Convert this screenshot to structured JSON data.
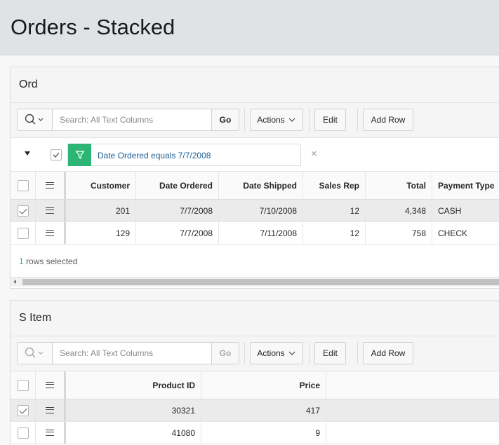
{
  "page": {
    "title": "Orders - Stacked"
  },
  "orders": {
    "title": "Ord",
    "toolbar": {
      "search_placeholder": "Search: All Text Columns",
      "go": "Go",
      "actions": "Actions",
      "edit": "Edit",
      "add_row": "Add Row"
    },
    "filter": {
      "text": "Date Ordered equals 7/7/2008",
      "remove": "×"
    },
    "columns": [
      "Customer",
      "Date Ordered",
      "Date Shipped",
      "Sales Rep",
      "Total",
      "Payment Type"
    ],
    "rows": [
      {
        "selected": true,
        "cells": [
          "201",
          "7/7/2008",
          "7/10/2008",
          "12",
          "4,348",
          "CASH"
        ]
      },
      {
        "selected": false,
        "cells": [
          "129",
          "7/7/2008",
          "7/11/2008",
          "12",
          "758",
          "CHECK"
        ]
      }
    ],
    "footer": {
      "count": "1",
      "label": " rows selected"
    }
  },
  "items": {
    "title": "S Item",
    "toolbar": {
      "search_placeholder": "Search: All Text Columns",
      "go": "Go",
      "actions": "Actions",
      "edit": "Edit",
      "add_row": "Add Row"
    },
    "columns": [
      "Product ID",
      "Price"
    ],
    "rows": [
      {
        "selected": true,
        "cells": [
          "30321",
          "417"
        ]
      },
      {
        "selected": false,
        "cells": [
          "41080",
          "9"
        ]
      }
    ]
  },
  "colors": {
    "accent_green": "#2bb673",
    "link_blue": "#1c5f96",
    "header_bg": "#e0e3e6"
  },
  "icons": {
    "search": "search-icon",
    "filter": "funnel-icon",
    "menu": "hamburger-icon"
  }
}
